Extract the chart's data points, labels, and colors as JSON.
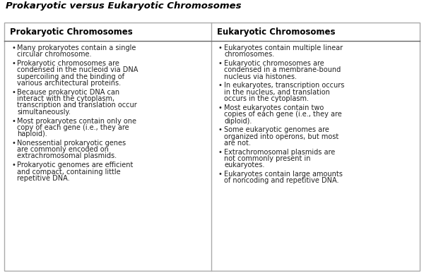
{
  "title": "Prokaryotic versus Eukaryotic Chromosomes",
  "col1_header": "Prokaryotic Chromosomes",
  "col2_header": "Eukaryotic Chromosomes",
  "col1_items": [
    "Many prokaryotes contain a single\ncircular chromosome.",
    "Prokaryotic chromosomes are\ncondensed in the nucleoid via DNA\nsupercoiling and the binding of\nvarious architectural proteins.",
    "Because prokaryotic DNA can\ninteract with the cytoplasm,\ntranscription and translation occur\nsimultaneously.",
    "Most prokaryotes contain only one\ncopy of each gene (i.e., they are\nhaploid).",
    "Nonessential prokaryotic genes\nare commonly encoded on\nextrachromosomal plasmids.",
    "Prokaryotic genomes are efficient\nand compact, containing little\nrepetitive DNA."
  ],
  "col2_items": [
    "Eukaryotes contain multiple linear\nchromosomes.",
    "Eukaryotic chromosomes are\ncondensed in a membrane-bound\nnucleus via histones.",
    "In eukaryotes, transcription occurs\nin the nucleus, and translation\noccurs in the cytoplasm.",
    "Most eukaryotes contain two\ncopies of each gene (i.e., they are\ndiploid).",
    "Some eukaryotic genomes are\norganized into operons, but most\nare not.",
    "Extrachromosomal plasmids are\nnot commonly present in\neukaryotes.",
    "Eukaryotes contain large amounts\nof noncoding and repetitive DNA."
  ],
  "bg_color": "#ffffff",
  "border_color": "#aaaaaa",
  "header_line_color": "#666666",
  "title_color": "#000000",
  "header_text_color": "#000000",
  "body_text_color": "#222222",
  "title_fontsize": 9.5,
  "header_fontsize": 8.5,
  "body_fontsize": 7.0,
  "fig_width": 6.0,
  "fig_height": 3.9,
  "dpi": 100
}
